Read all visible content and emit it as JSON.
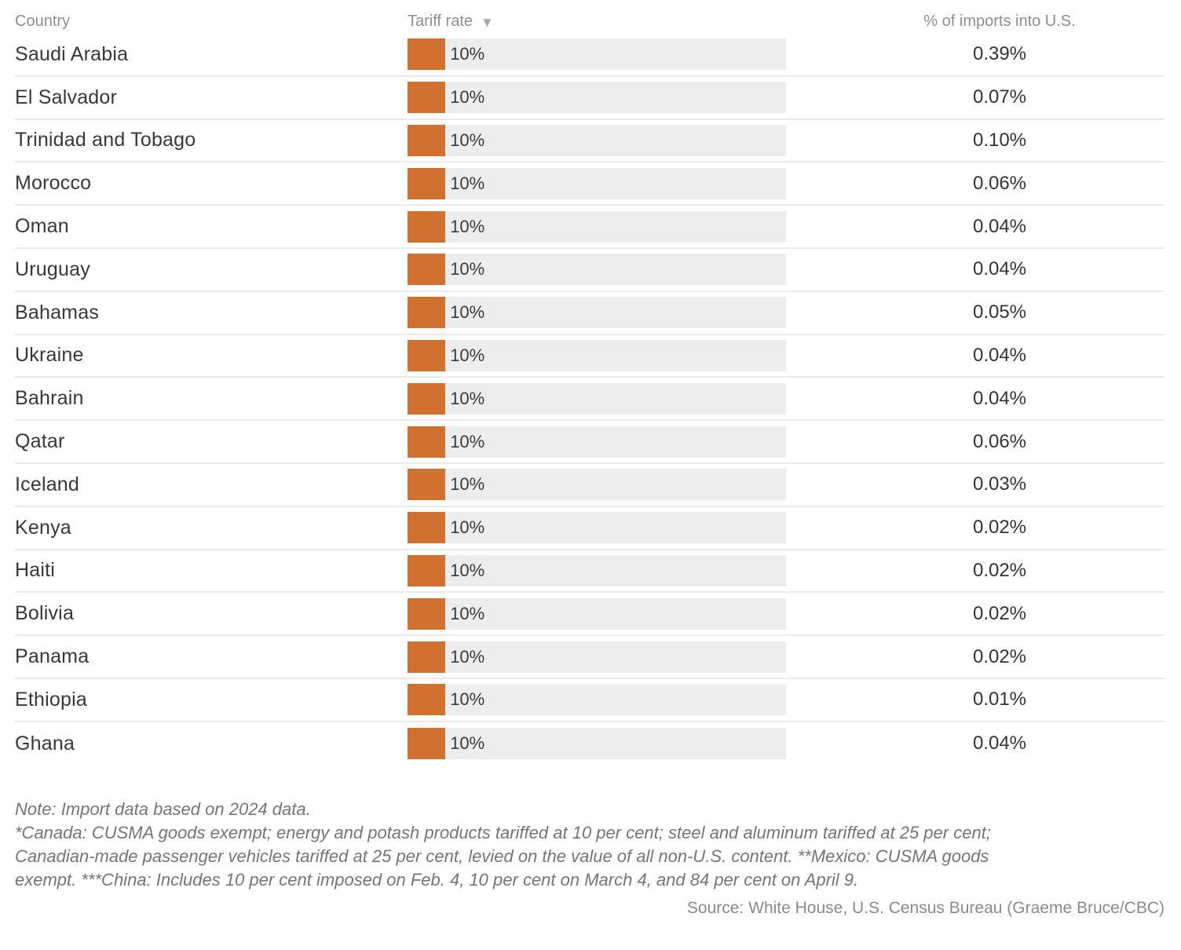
{
  "table": {
    "headers": {
      "country": "Country",
      "tariff": "Tariff rate",
      "tariff_sort_icon": "▼",
      "imports": "% of imports into U.S."
    },
    "rows": [
      {
        "country": "Saudi Arabia",
        "tariff_label": "10%",
        "tariff_value": 10,
        "imports_share": "0.39%"
      },
      {
        "country": "El Salvador",
        "tariff_label": "10%",
        "tariff_value": 10,
        "imports_share": "0.07%"
      },
      {
        "country": "Trinidad and Tobago",
        "tariff_label": "10%",
        "tariff_value": 10,
        "imports_share": "0.10%"
      },
      {
        "country": "Morocco",
        "tariff_label": "10%",
        "tariff_value": 10,
        "imports_share": "0.06%"
      },
      {
        "country": "Oman",
        "tariff_label": "10%",
        "tariff_value": 10,
        "imports_share": "0.04%"
      },
      {
        "country": "Uruguay",
        "tariff_label": "10%",
        "tariff_value": 10,
        "imports_share": "0.04%"
      },
      {
        "country": "Bahamas",
        "tariff_label": "10%",
        "tariff_value": 10,
        "imports_share": "0.05%"
      },
      {
        "country": "Ukraine",
        "tariff_label": "10%",
        "tariff_value": 10,
        "imports_share": "0.04%"
      },
      {
        "country": "Bahrain",
        "tariff_label": "10%",
        "tariff_value": 10,
        "imports_share": "0.04%"
      },
      {
        "country": "Qatar",
        "tariff_label": "10%",
        "tariff_value": 10,
        "imports_share": "0.06%"
      },
      {
        "country": "Iceland",
        "tariff_label": "10%",
        "tariff_value": 10,
        "imports_share": "0.03%"
      },
      {
        "country": "Kenya",
        "tariff_label": "10%",
        "tariff_value": 10,
        "imports_share": "0.02%"
      },
      {
        "country": "Haiti",
        "tariff_label": "10%",
        "tariff_value": 10,
        "imports_share": "0.02%"
      },
      {
        "country": "Bolivia",
        "tariff_label": "10%",
        "tariff_value": 10,
        "imports_share": "0.02%"
      },
      {
        "country": "Panama",
        "tariff_label": "10%",
        "tariff_value": 10,
        "imports_share": "0.02%"
      },
      {
        "country": "Ethiopia",
        "tariff_label": "10%",
        "tariff_value": 10,
        "imports_share": "0.01%"
      },
      {
        "country": "Ghana",
        "tariff_label": "10%",
        "tariff_value": 10,
        "imports_share": "0.04%"
      }
    ]
  },
  "chart_data": {
    "type": "bar",
    "orientation": "horizontal",
    "categories": [
      "Saudi Arabia",
      "El Salvador",
      "Trinidad and Tobago",
      "Morocco",
      "Oman",
      "Uruguay",
      "Bahamas",
      "Ukraine",
      "Bahrain",
      "Qatar",
      "Iceland",
      "Kenya",
      "Haiti",
      "Bolivia",
      "Panama",
      "Ethiopia",
      "Ghana"
    ],
    "series": [
      {
        "name": "Tariff rate (%)",
        "values": [
          10,
          10,
          10,
          10,
          10,
          10,
          10,
          10,
          10,
          10,
          10,
          10,
          10,
          10,
          10,
          10,
          10
        ]
      },
      {
        "name": "% of imports into U.S.",
        "values": [
          0.39,
          0.07,
          0.1,
          0.06,
          0.04,
          0.04,
          0.05,
          0.04,
          0.04,
          0.06,
          0.03,
          0.02,
          0.02,
          0.02,
          0.02,
          0.01,
          0.04
        ]
      }
    ],
    "xlim": [
      0,
      100
    ],
    "scale_max": 100,
    "bar_color": "#d1702f",
    "track_color": "#ededed",
    "grid": false,
    "legend": "none",
    "sort": "Tariff rate descending"
  },
  "notes": {
    "lines": [
      "Note: Import data based on 2024 data.",
      "*Canada: CUSMA goods exempt; energy and potash products tariffed at 10 per cent; steel and aluminum tariffed at 25 per cent;",
      "Canadian-made passenger vehicles tariffed at 25 per cent, levied on the value of all non-U.S. content. **Mexico: CUSMA goods",
      "exempt. ***China: Includes 10 per cent imposed on Feb. 4, 10 per cent on March 4, and 84 per cent on April 9."
    ]
  },
  "source": "Source: White House, U.S. Census Bureau (Graeme Bruce/CBC)",
  "colors": {
    "bar": "#d1702f",
    "track": "#ededed",
    "header_text": "#8e8e8e",
    "row_text": "#383838",
    "separator": "#eaeaea",
    "note_text": "#757575"
  }
}
